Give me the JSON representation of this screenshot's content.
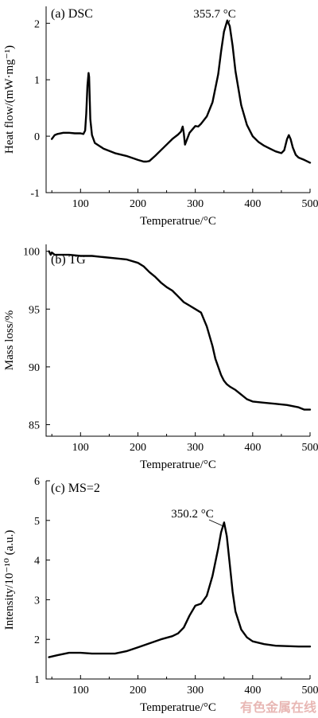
{
  "chart_data": [
    {
      "type": "line",
      "title": "(a)  DSC",
      "xlabel": "Temperatrue/°C",
      "ylabel": "Heat flow/(mW·mg⁻¹)",
      "xlim": [
        40,
        500
      ],
      "ylim": [
        -1,
        2.3
      ],
      "xticks": [
        100,
        200,
        300,
        400,
        500
      ],
      "yticks": [
        -1,
        0,
        1,
        2
      ],
      "grid": false,
      "annotation": {
        "text": "355.7 °C",
        "x": 355.7,
        "y": 2.05
      },
      "series": [
        {
          "x": [
            50,
            55,
            60,
            70,
            80,
            90,
            100,
            105,
            108,
            110,
            112,
            114,
            115,
            117,
            120,
            125,
            140,
            160,
            180,
            200,
            210,
            215,
            220,
            230,
            240,
            250,
            260,
            270,
            275,
            278,
            280,
            282,
            290,
            300,
            305,
            310,
            320,
            330,
            340,
            345,
            350,
            355.7,
            360,
            365,
            370,
            380,
            390,
            400,
            410,
            420,
            430,
            440,
            450,
            455,
            460,
            463,
            466,
            470,
            475,
            480,
            490,
            500
          ],
          "y": [
            -0.05,
            0.02,
            0.04,
            0.06,
            0.06,
            0.05,
            0.05,
            0.04,
            0.1,
            0.4,
            0.9,
            1.12,
            1.05,
            0.3,
            0.02,
            -0.12,
            -0.22,
            -0.3,
            -0.35,
            -0.42,
            -0.45,
            -0.45,
            -0.44,
            -0.35,
            -0.25,
            -0.15,
            -0.05,
            0.03,
            0.08,
            0.17,
            0.05,
            -0.15,
            0.06,
            0.18,
            0.17,
            0.22,
            0.35,
            0.6,
            1.1,
            1.5,
            1.85,
            2.05,
            1.95,
            1.6,
            1.15,
            0.55,
            0.2,
            0.0,
            -0.1,
            -0.17,
            -0.22,
            -0.27,
            -0.3,
            -0.25,
            -0.05,
            0.02,
            -0.05,
            -0.2,
            -0.33,
            -0.38,
            -0.42,
            -0.47
          ]
        }
      ]
    },
    {
      "type": "line",
      "title": "(b)  TG",
      "xlabel": "Temperatrue/°C",
      "ylabel": "Mass loss/%",
      "xlim": [
        40,
        500
      ],
      "ylim": [
        84,
        100.6
      ],
      "xticks": [
        100,
        200,
        300,
        400,
        500
      ],
      "yticks": [
        85,
        90,
        95,
        100
      ],
      "grid": false,
      "series": [
        {
          "x": [
            45,
            48,
            50,
            55,
            60,
            80,
            100,
            120,
            140,
            160,
            180,
            200,
            210,
            220,
            230,
            240,
            250,
            260,
            270,
            280,
            290,
            300,
            310,
            320,
            330,
            335,
            340,
            345,
            350,
            355,
            360,
            370,
            380,
            390,
            400,
            420,
            440,
            460,
            480,
            490,
            500
          ],
          "y": [
            100.0,
            99.7,
            99.9,
            99.7,
            99.7,
            99.7,
            99.6,
            99.6,
            99.5,
            99.4,
            99.3,
            99.0,
            98.7,
            98.2,
            97.8,
            97.3,
            96.9,
            96.6,
            96.1,
            95.6,
            95.3,
            95.0,
            94.7,
            93.5,
            91.8,
            90.7,
            90.0,
            89.3,
            88.8,
            88.5,
            88.3,
            88.0,
            87.6,
            87.2,
            87.0,
            86.9,
            86.8,
            86.7,
            86.5,
            86.3,
            86.3
          ]
        }
      ]
    },
    {
      "type": "line",
      "title": "(c)  MS=2",
      "xlabel": "Temperatrue/°C",
      "ylabel": "Intensity/10⁻¹⁰ (a.u.)",
      "xlim": [
        40,
        500
      ],
      "ylim": [
        1,
        6
      ],
      "xticks": [
        100,
        200,
        300,
        400,
        500
      ],
      "yticks": [
        1,
        2,
        3,
        4,
        5,
        6
      ],
      "grid": false,
      "annotation": {
        "text": "350.2 °C",
        "x": 350.2,
        "y": 4.95
      },
      "series": [
        {
          "x": [
            45,
            60,
            80,
            100,
            120,
            140,
            160,
            180,
            200,
            220,
            240,
            260,
            270,
            280,
            290,
            300,
            310,
            320,
            330,
            340,
            345,
            350.2,
            355,
            360,
            365,
            370,
            380,
            390,
            400,
            420,
            440,
            460,
            480,
            500
          ],
          "y": [
            1.55,
            1.6,
            1.66,
            1.66,
            1.64,
            1.64,
            1.64,
            1.7,
            1.8,
            1.9,
            2.0,
            2.08,
            2.15,
            2.3,
            2.6,
            2.85,
            2.9,
            3.1,
            3.6,
            4.3,
            4.7,
            4.95,
            4.6,
            3.9,
            3.2,
            2.7,
            2.25,
            2.05,
            1.95,
            1.88,
            1.84,
            1.83,
            1.82,
            1.82
          ]
        }
      ]
    }
  ],
  "watermark": "有色金属在线"
}
